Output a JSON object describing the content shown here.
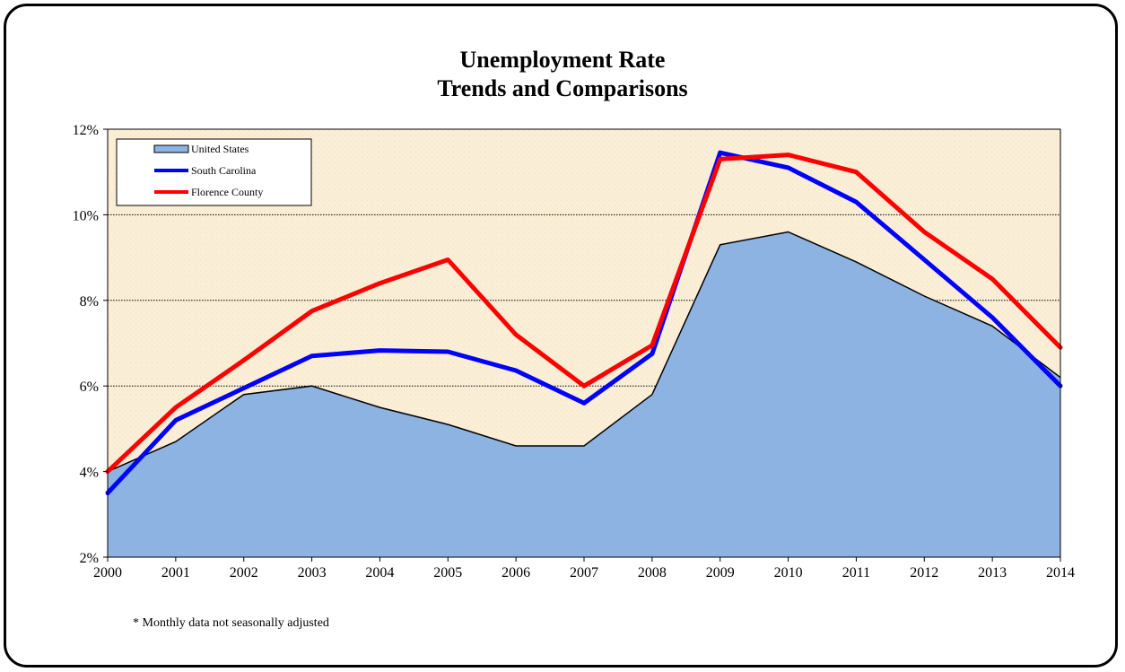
{
  "chart_data": {
    "type": "line",
    "title": "Unemployment Rate",
    "subtitle": "Trends and Comparisons",
    "xlabel": "",
    "ylabel": "",
    "x": [
      2000,
      2001,
      2002,
      2003,
      2004,
      2005,
      2006,
      2007,
      2008,
      2009,
      2010,
      2011,
      2012,
      2013,
      2014
    ],
    "ylim": [
      2,
      12
    ],
    "yticks": [
      2,
      4,
      6,
      8,
      10,
      12
    ],
    "ytick_labels": [
      "2%",
      "4%",
      "6%",
      "8%",
      "10%",
      "12%"
    ],
    "grid": "horizontal",
    "legend_position": "top-left",
    "series": [
      {
        "name": "United States",
        "style": "area",
        "color": "#8db3e2",
        "values": [
          4.0,
          4.7,
          5.8,
          6.0,
          5.5,
          5.1,
          4.6,
          4.6,
          5.8,
          9.3,
          9.6,
          8.9,
          8.1,
          7.4,
          6.2
        ]
      },
      {
        "name": "South Carolina",
        "style": "line",
        "color": "#0000ff",
        "values": [
          3.5,
          5.2,
          5.95,
          6.7,
          6.83,
          6.8,
          6.36,
          5.6,
          6.75,
          11.45,
          11.1,
          10.3,
          8.95,
          7.6,
          6.0
        ]
      },
      {
        "name": "Florence County",
        "style": "line",
        "color": "#ff0000",
        "values": [
          4.0,
          5.5,
          6.6,
          7.75,
          8.4,
          8.95,
          7.2,
          6.0,
          6.95,
          11.3,
          11.4,
          11.0,
          9.6,
          8.5,
          6.9
        ]
      }
    ],
    "footnote": "* Monthly data not seasonally adjusted"
  },
  "colors": {
    "plot_background": "#fbeed6",
    "grid": "#000000",
    "area_outline": "#000000"
  }
}
